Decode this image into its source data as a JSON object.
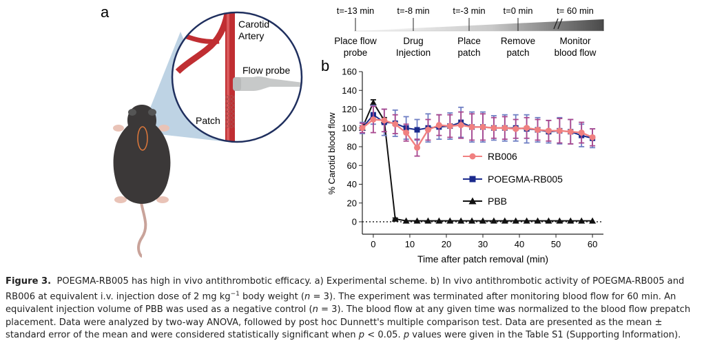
{
  "panel_a": {
    "label": "a",
    "inset_labels": {
      "artery": "Carotid",
      "artery2": "Artery",
      "probe": "Flow probe",
      "patch": "Patch"
    }
  },
  "timeline": {
    "events": [
      {
        "time": "t=-13 min",
        "label1": "Place flow",
        "label2": "probe"
      },
      {
        "time": "t=-8 min",
        "label1": "Drug",
        "label2": "Injection"
      },
      {
        "time": "t=-3 min",
        "label1": "Place",
        "label2": "patch"
      },
      {
        "time": "t=0 min",
        "label1": "Remove",
        "label2": "patch"
      },
      {
        "time": "t= 60 min",
        "label1": "Monitor",
        "label2": "blood flow"
      }
    ]
  },
  "chart_data": {
    "panel_label": "b",
    "type": "line",
    "xlabel": "Time after patch removal (min)",
    "ylabel": "% Carotid blood flow",
    "xlim": [
      -3,
      63
    ],
    "ylim": [
      0,
      160
    ],
    "xticks": [
      0,
      10,
      20,
      30,
      40,
      50,
      60
    ],
    "yticks": [
      0,
      20,
      40,
      60,
      80,
      100,
      120,
      140,
      160
    ],
    "reference_line": 0,
    "series": [
      {
        "name": "RB006",
        "color": "#f08080",
        "marker": "circle",
        "x": [
          -3,
          0,
          3,
          6,
          9,
          12,
          15,
          18,
          21,
          24,
          27,
          30,
          33,
          36,
          39,
          42,
          45,
          48,
          51,
          54,
          57,
          60
        ],
        "y": [
          100,
          109,
          108,
          104,
          95,
          79,
          98,
          103,
          102,
          103,
          101,
          101,
          100,
          100,
          99,
          100,
          98,
          97,
          97,
          96,
          95,
          90
        ],
        "err": [
          5,
          14,
          12,
          10,
          9,
          9,
          11,
          11,
          12,
          14,
          14,
          14,
          11,
          12,
          10,
          11,
          11,
          11,
          13,
          13,
          11,
          9
        ]
      },
      {
        "name": "POEGMA-RB005",
        "color": "#1a2a8c",
        "marker": "square",
        "x": [
          -3,
          0,
          3,
          6,
          9,
          12,
          15,
          18,
          21,
          24,
          27,
          30,
          33,
          36,
          39,
          42,
          45,
          48,
          51,
          54,
          57,
          60
        ],
        "y": [
          100,
          114,
          106,
          105,
          100,
          98,
          100,
          101,
          102,
          106,
          101,
          101,
          100,
          100,
          100,
          99,
          98,
          96,
          97,
          96,
          92,
          89
        ],
        "err": [
          6,
          10,
          14,
          14,
          12,
          11,
          15,
          13,
          14,
          16,
          16,
          16,
          13,
          14,
          14,
          15,
          13,
          12,
          14,
          13,
          12,
          10
        ]
      },
      {
        "name": "PBB",
        "color": "#111111",
        "marker": "triangle",
        "x": [
          -3,
          0,
          3,
          6,
          9,
          12,
          15,
          18,
          21,
          24,
          27,
          30,
          33,
          36,
          39,
          42,
          45,
          48,
          51,
          54,
          57,
          60
        ],
        "y": [
          100,
          127,
          108,
          3,
          1,
          1,
          1,
          1,
          1,
          1,
          1,
          1,
          1,
          1,
          1,
          1,
          1,
          1,
          1,
          1,
          1,
          1
        ],
        "err": [
          0,
          3,
          3,
          1,
          0,
          0,
          0,
          0,
          0,
          0,
          0,
          0,
          0,
          0,
          0,
          0,
          0,
          0,
          0,
          0,
          0,
          0
        ]
      }
    ]
  },
  "caption": {
    "label": "Figure 3.",
    "title": "POEGMA-RB005 has high in vivo antithrombotic efficacy. a) Experimental scheme. b) In vivo antithrombotic activity of POEGMA-RB005 and RB006 at equivalent i.v. injection dose of 2 mg kg",
    "exponent": "−1",
    "n_pre": " body weight (",
    "n1": "n",
    "n_mid1": " = 3). The experiment was terminated after monitoring blood flow for 60 min. An equivalent injection volume of PBB was used as a negative control (",
    "n2": "n",
    "n_mid2": " = 3). The blood flow at any given time was normalized to the blood flow prepatch placement. Data were analyzed by two-way ANOVA, followed by post hoc Dunnett's multiple comparison test. Data are presented as the mean ± standard error of the mean and were considered statistically significant when ",
    "p1": "p",
    "p_mid": " < 0.05. ",
    "p2": "p",
    "end": " values were given in the Table S1 (Supporting Information)."
  }
}
